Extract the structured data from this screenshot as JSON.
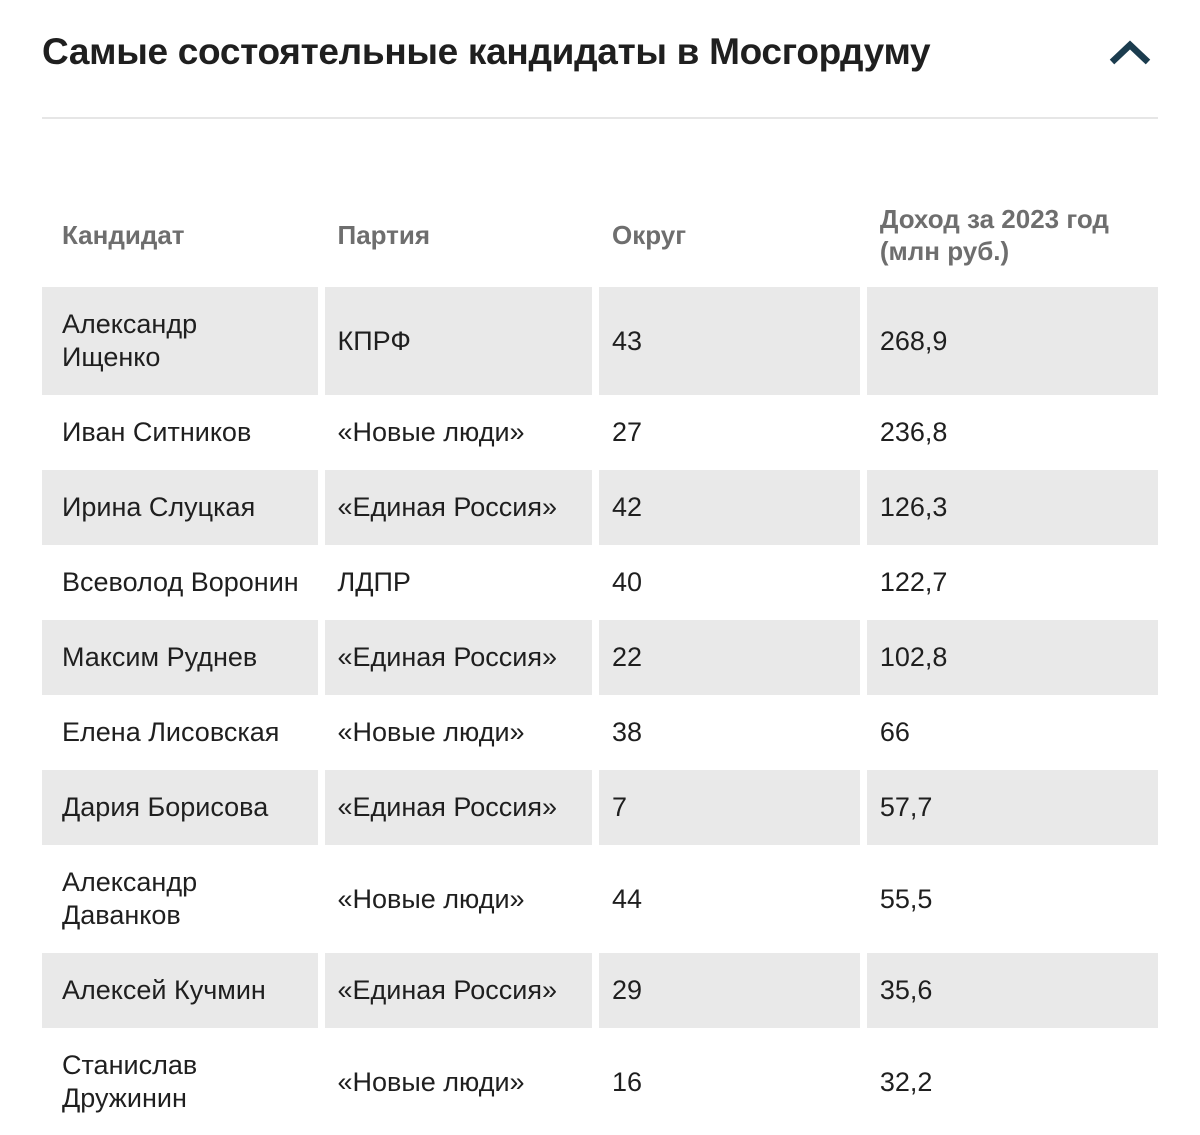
{
  "widget": {
    "collapse_icon": "chevron-up"
  },
  "chart_data": {
    "type": "table",
    "title": "Самые состоятельные кандидаты в Мосгордуму",
    "columns": [
      "Кандидат",
      "Партия",
      "Округ",
      "Доход за 2023 год (млн руб.)"
    ],
    "row_keys": [
      "candidate",
      "party",
      "district",
      "income"
    ],
    "rows": [
      {
        "candidate": "Александр Ищенко",
        "party": "КПРФ",
        "district": "43",
        "income": "268,9"
      },
      {
        "candidate": "Иван Ситников",
        "party": "«Новые люди»",
        "district": "27",
        "income": "236,8"
      },
      {
        "candidate": "Ирина Слуцкая",
        "party": "«Единая Россия»",
        "district": "42",
        "income": "126,3"
      },
      {
        "candidate": "Всеволод Воронин",
        "party": "ЛДПР",
        "district": "40",
        "income": "122,7"
      },
      {
        "candidate": "Максим Руднев",
        "party": "«Единая Россия»",
        "district": "22",
        "income": "102,8"
      },
      {
        "candidate": "Елена Лисовская",
        "party": "«Новые люди»",
        "district": "38",
        "income": "66"
      },
      {
        "candidate": "Дария Борисова",
        "party": "«Единая Россия»",
        "district": "7",
        "income": "57,7"
      },
      {
        "candidate": "Александр Даванков",
        "party": "«Новые люди»",
        "district": "44",
        "income": "55,5"
      },
      {
        "candidate": "Алексей Кучмин",
        "party": "«Единая Россия»",
        "district": "29",
        "income": "35,6"
      },
      {
        "candidate": "Станислав Дружинин",
        "party": "«Новые люди»",
        "district": "16",
        "income": "32,2"
      }
    ]
  },
  "colors": {
    "text": "#1f1f1f",
    "header_text": "#6e6e6e",
    "row_alt_bg": "#e9e9e9",
    "divider": "#e6e6e6",
    "scrollbar": "#b7b7b7",
    "chevron": "#1b3c4e"
  }
}
